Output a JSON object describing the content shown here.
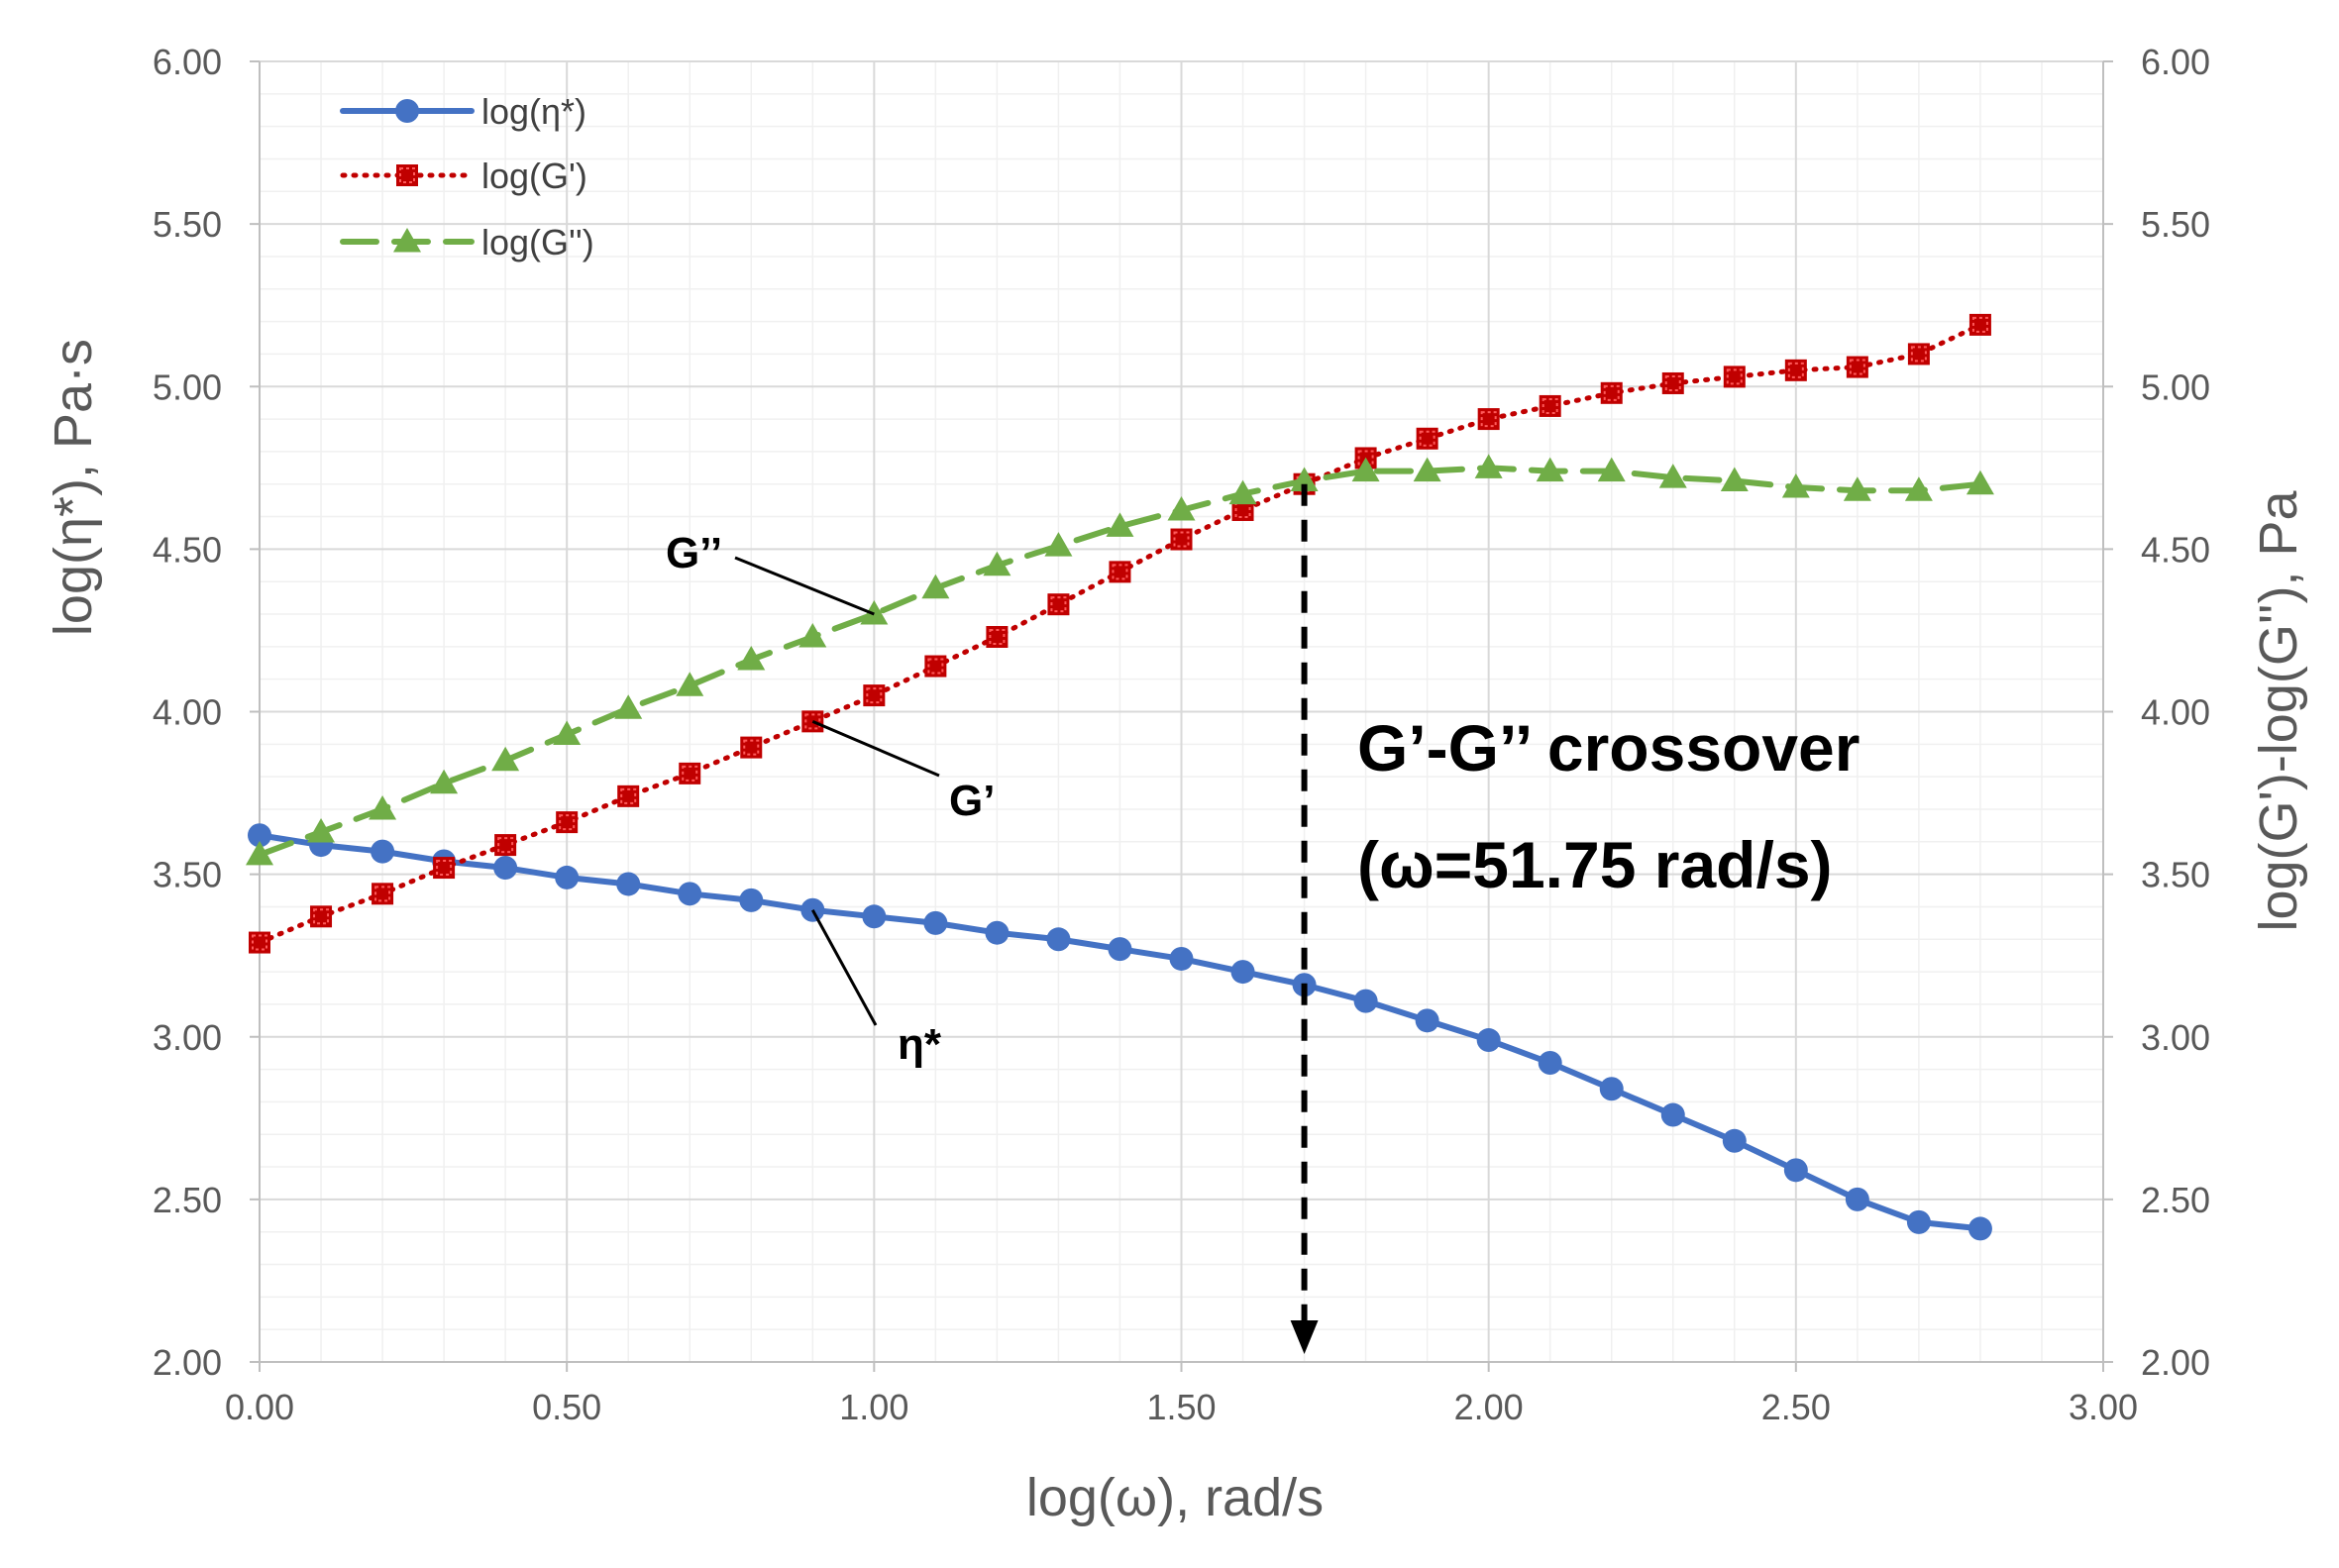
{
  "chart_data": {
    "type": "line",
    "title": "",
    "xlabel": "log(ω), rad/s",
    "ylabel": "log(η*), Pa·s",
    "ylabel_right": "log(G')-log(G''), Pa",
    "xlim": [
      0,
      3
    ],
    "ylim": [
      2,
      6
    ],
    "ylim_right": [
      2,
      6
    ],
    "x_ticks": [
      "0.00",
      "0.50",
      "1.00",
      "1.50",
      "2.00",
      "2.50",
      "3.00"
    ],
    "y_ticks": [
      "2.00",
      "2.50",
      "3.00",
      "3.50",
      "4.00",
      "4.50",
      "5.00",
      "5.50",
      "6.00"
    ],
    "y_ticks_right": [
      "2.00",
      "2.50",
      "3.00",
      "3.50",
      "4.00",
      "4.50",
      "5.00",
      "5.50",
      "6.00"
    ],
    "grid": true,
    "legend_position": "top-left",
    "x": [
      0.0,
      0.1,
      0.2,
      0.3,
      0.4,
      0.5,
      0.6,
      0.7,
      0.8,
      0.9,
      1.0,
      1.1,
      1.2,
      1.3,
      1.4,
      1.5,
      1.6,
      1.7,
      1.8,
      1.9,
      2.0,
      2.1,
      2.2,
      2.3,
      2.4,
      2.5,
      2.6,
      2.7,
      2.8
    ],
    "series": [
      {
        "name": "log(η*)",
        "color": "#4472C4",
        "marker": "circle",
        "line_style": "solid",
        "values": [
          3.62,
          3.59,
          3.57,
          3.54,
          3.52,
          3.49,
          3.47,
          3.44,
          3.42,
          3.39,
          3.37,
          3.35,
          3.32,
          3.3,
          3.27,
          3.24,
          3.2,
          3.16,
          3.11,
          3.05,
          2.99,
          2.92,
          2.84,
          2.76,
          2.68,
          2.59,
          2.5,
          2.43,
          2.41
        ]
      },
      {
        "name": "log(G')",
        "color": "#C00000",
        "marker": "square",
        "line_style": "dotted",
        "values": [
          3.29,
          3.37,
          3.44,
          3.52,
          3.59,
          3.66,
          3.74,
          3.81,
          3.89,
          3.97,
          4.05,
          4.14,
          4.23,
          4.33,
          4.43,
          4.53,
          4.62,
          4.7,
          4.78,
          4.84,
          4.9,
          4.94,
          4.98,
          5.01,
          5.03,
          5.05,
          5.06,
          5.1,
          5.19
        ]
      },
      {
        "name": "log(G'')",
        "color": "#70AD47",
        "marker": "triangle",
        "line_style": "dashed",
        "values": [
          3.56,
          3.63,
          3.7,
          3.78,
          3.85,
          3.93,
          4.01,
          4.08,
          4.16,
          4.23,
          4.3,
          4.38,
          4.45,
          4.51,
          4.57,
          4.62,
          4.67,
          4.71,
          4.74,
          4.74,
          4.75,
          4.74,
          4.74,
          4.72,
          4.71,
          4.69,
          4.68,
          4.68,
          4.7
        ]
      }
    ],
    "annotations": [
      {
        "text": "G’’",
        "points_to": {
          "x": 1.0,
          "y": 4.3
        }
      },
      {
        "text": "G’",
        "points_to": {
          "x": 0.9,
          "y": 3.97
        }
      },
      {
        "text": "η*",
        "points_to": {
          "x": 0.9,
          "y": 3.39
        }
      },
      {
        "text": "G’-G’’ crossover",
        "type": "heading"
      },
      {
        "text": "(ω=51.75 rad/s)",
        "type": "heading"
      }
    ],
    "crossover": {
      "x": 1.7,
      "y_from": 4.7,
      "y_to": 2.0,
      "style": "dashed-arrow"
    }
  }
}
